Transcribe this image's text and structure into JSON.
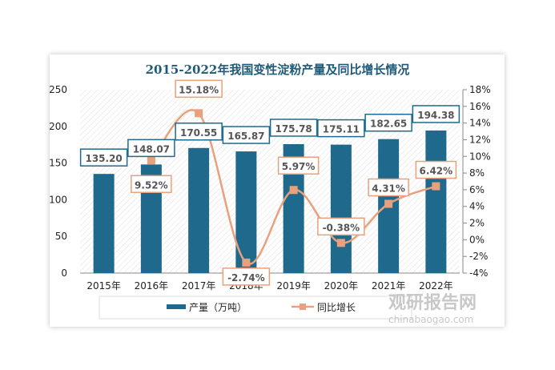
{
  "chart_data": {
    "type": "bar+line",
    "title": "2015-2022年我国变性淀粉产量及同比增长情况",
    "categories": [
      "2015年",
      "2016年",
      "2017年",
      "2018年",
      "2019年",
      "2020年",
      "2021年",
      "2022年"
    ],
    "series": [
      {
        "name": "产量（万吨）",
        "type": "bar",
        "axis": "left",
        "values": [
          135.2,
          148.07,
          170.55,
          165.87,
          175.78,
          175.11,
          182.65,
          194.38
        ],
        "labels": [
          "135.20",
          "148.07",
          "170.55",
          "165.87",
          "175.78",
          "175.11",
          "182.65",
          "194.38"
        ],
        "color": "#1f6a8c"
      },
      {
        "name": "同比增长",
        "type": "line",
        "axis": "right",
        "values": [
          null,
          9.52,
          15.18,
          -2.74,
          5.97,
          -0.38,
          4.31,
          6.42
        ],
        "labels": [
          "",
          "9.52%",
          "15.18%",
          "-2.74%",
          "5.97%",
          "-0.38%",
          "4.31%",
          "6.42%"
        ],
        "color": "#e9a07c"
      }
    ],
    "ylim": [
      0,
      250
    ],
    "yticks": [
      "0",
      "50",
      "100",
      "150",
      "200",
      "250"
    ],
    "y2lim": [
      -4,
      18
    ],
    "y2ticks": [
      "-4%",
      "-2%",
      "0%",
      "2%",
      "4%",
      "6%",
      "8%",
      "10%",
      "12%",
      "14%",
      "16%",
      "18%"
    ],
    "legend": "bottom"
  },
  "watermark": {
    "name": "观研报告网",
    "url": "chinabaogao.com"
  }
}
